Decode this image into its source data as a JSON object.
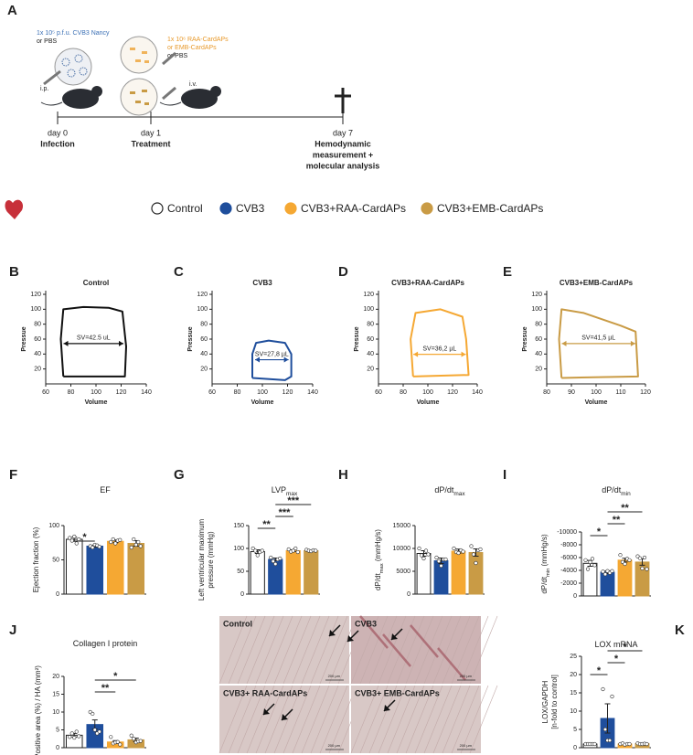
{
  "timeline": {
    "panel": "A",
    "infection_dose": "1x 10⁵ p.f.u. CVB3 Nancy",
    "infection_alt": "or PBS",
    "infection_route": "i.p.",
    "treatment_lines": [
      "1x 10⁶ RAA-CardAPs",
      "or EMB-CardAPs",
      "or PBS"
    ],
    "treatment_route": "i.v.",
    "events": [
      {
        "day": "day 0",
        "label": [
          "Infection"
        ]
      },
      {
        "day": "day 1",
        "label": [
          "Treatment"
        ]
      },
      {
        "day": "day 7",
        "label": [
          "Hemodynamic",
          "measurement +",
          "molecular analysis"
        ]
      }
    ]
  },
  "legend": [
    {
      "name": "Control",
      "color": "#ffffff"
    },
    {
      "name": "CVB3",
      "color": "#1f4e9c"
    },
    {
      "name": "CVB3+RAA-CardAPs",
      "color": "#f5a833"
    },
    {
      "name": "CVB3+EMB-CardAPs",
      "color": "#c99b45"
    }
  ],
  "histology": {
    "panels": [
      {
        "label": "Control"
      },
      {
        "label": "CVB3"
      },
      {
        "label": "CVB3+ RAA-CardAPs"
      },
      {
        "label": "CVB3+ EMB-CardAPs"
      }
    ],
    "scale_bar": "200 µm"
  },
  "chart_data": [
    {
      "type": "pv_loop",
      "panel": "B",
      "title": "Control",
      "color": "#111111",
      "xlabel": "Volume",
      "ylabel": "Pressue",
      "annotation": "SV=42.5 uL",
      "x": [
        74,
        72,
        74,
        90,
        110,
        121,
        124,
        123,
        74
      ],
      "y": [
        10,
        60,
        100,
        103,
        102,
        97,
        50,
        10,
        10
      ],
      "xlim": [
        60,
        140
      ],
      "xticks": [
        60,
        80,
        100,
        120,
        140
      ],
      "ylim": [
        0,
        120
      ],
      "yticks": [
        20,
        40,
        60,
        80,
        100,
        120
      ]
    },
    {
      "type": "pv_loop",
      "panel": "C",
      "title": "CVB3",
      "color": "#1f4e9c",
      "xlabel": "Volume",
      "ylabel": "Pressue",
      "annotation": "SV=27,8 µL",
      "x": [
        92,
        92,
        95,
        105,
        118,
        123,
        123,
        118,
        92
      ],
      "y": [
        8,
        40,
        55,
        58,
        55,
        40,
        10,
        5,
        8
      ],
      "xlim": [
        60,
        140
      ],
      "xticks": [
        60,
        80,
        100,
        120,
        140
      ],
      "ylim": [
        0,
        120
      ],
      "yticks": [
        20,
        40,
        60,
        80,
        100,
        120
      ]
    },
    {
      "type": "pv_loop",
      "panel": "D",
      "title": "CVB3+RAA-CardAPs",
      "color": "#f5a833",
      "xlabel": "Volume",
      "ylabel": "Pressue",
      "annotation": "SV=36,2 µL",
      "x": [
        88,
        86,
        90,
        110,
        128,
        131,
        133,
        88
      ],
      "y": [
        10,
        60,
        95,
        100,
        90,
        60,
        12,
        10
      ],
      "xlim": [
        60,
        140
      ],
      "xticks": [
        60,
        80,
        100,
        120,
        140
      ],
      "ylim": [
        0,
        120
      ],
      "yticks": [
        20,
        40,
        60,
        80,
        100,
        120
      ]
    },
    {
      "type": "pv_loop",
      "panel": "E",
      "title": "CVB3+EMB-CardAPs",
      "color": "#c99b45",
      "xlabel": "Volume",
      "ylabel": "Pressue",
      "annotation": "SV=41,5 µL",
      "x": [
        86,
        85,
        86,
        95,
        110,
        116,
        117,
        86
      ],
      "y": [
        8,
        60,
        100,
        95,
        78,
        70,
        10,
        8
      ],
      "xlim": [
        80,
        120
      ],
      "xticks": [
        80,
        90,
        100,
        110,
        120
      ],
      "ylim": [
        0,
        120
      ],
      "yticks": [
        20,
        40,
        60,
        80,
        100,
        120
      ]
    },
    {
      "type": "bar",
      "panel": "F",
      "title": [
        {
          "text": "EF"
        }
      ],
      "ylabel": [
        [
          {
            "text": "Ejection fraction (%)"
          }
        ]
      ],
      "values": [
        80,
        70,
        77,
        74
      ],
      "errors": [
        3,
        1.5,
        2,
        4
      ],
      "points": [
        [
          82,
          78,
          84,
          74,
          80
        ],
        [
          70,
          68,
          72,
          71,
          69
        ],
        [
          76,
          80,
          74,
          78,
          79
        ],
        [
          68,
          80,
          72,
          76,
          70
        ]
      ],
      "significance": [
        {
          "from": 0,
          "to": 1,
          "label": "*"
        }
      ],
      "ylim": [
        0,
        100
      ],
      "yticks": [
        0,
        50,
        100
      ]
    },
    {
      "type": "bar",
      "panel": "G",
      "title": [
        {
          "text": "LVP"
        },
        {
          "sub": "max"
        }
      ],
      "ylabel": [
        [
          {
            "text": "Left ventricular maximum"
          }
        ],
        [
          {
            "text": "pressure (mmHg)"
          }
        ]
      ],
      "values": [
        93,
        76,
        95,
        95
      ],
      "errors": [
        4,
        3,
        2,
        1.5
      ],
      "points": [
        [
          100,
          95,
          85,
          92,
          95
        ],
        [
          80,
          72,
          66,
          76,
          78
        ],
        [
          98,
          93,
          95,
          100,
          92
        ],
        [
          97,
          95,
          94,
          96,
          95
        ]
      ],
      "significance": [
        {
          "from": 0,
          "to": 1,
          "label": "**"
        },
        {
          "from": 1,
          "to": 2,
          "label": "***"
        },
        {
          "from": 1,
          "to": 3,
          "label": "***"
        }
      ],
      "ylim": [
        0,
        150
      ],
      "yticks": [
        0,
        50,
        100,
        150
      ]
    },
    {
      "type": "bar",
      "panel": "H",
      "title": [
        {
          "text": "dP/dt"
        },
        {
          "sub": "max"
        }
      ],
      "ylabel": [
        [
          {
            "text": "dP/dt"
          },
          {
            "sub": "max"
          },
          {
            "text": " (mmHg/s)"
          }
        ]
      ],
      "values": [
        8900,
        7300,
        9400,
        9100
      ],
      "errors": [
        600,
        600,
        450,
        800
      ],
      "points": [
        [
          10000,
          8500,
          7800,
          9500,
          8700
        ],
        [
          8000,
          7200,
          6200,
          7600,
          7600
        ],
        [
          10000,
          9200,
          9000,
          9600,
          9300
        ],
        [
          10500,
          8700,
          6800,
          9600,
          9800
        ]
      ],
      "significance": [],
      "ylim": [
        0,
        15000
      ],
      "yticks": [
        0,
        5000,
        10000,
        15000
      ]
    },
    {
      "type": "bar",
      "panel": "I",
      "title": [
        {
          "text": "dP/dt"
        },
        {
          "sub": "min"
        }
      ],
      "ylabel": [
        [
          {
            "text": "dP/dt"
          },
          {
            "sub": "min"
          },
          {
            "text": " (mmHg/s)"
          }
        ]
      ],
      "values": [
        -5100,
        -3700,
        -5600,
        -5300
      ],
      "errors": [
        450,
        200,
        300,
        500
      ],
      "points": [
        [
          -5600,
          -4200,
          -5300,
          -5800,
          -4800
        ],
        [
          -3800,
          -3400,
          -3900,
          -3600,
          -3900
        ],
        [
          -6400,
          -5300,
          -5000,
          -5800,
          -5600
        ],
        [
          -6200,
          -5900,
          -4300,
          -6000,
          -4200
        ]
      ],
      "significance": [
        {
          "from": 0,
          "to": 1,
          "label": "*"
        },
        {
          "from": 1,
          "to": 2,
          "label": "**"
        },
        {
          "from": 1,
          "to": 3,
          "label": "**"
        }
      ],
      "ylim": [
        0,
        -10000
      ],
      "yticks": [
        -10000,
        -8000,
        -6000,
        -4000,
        -2000,
        0
      ]
    },
    {
      "type": "bar",
      "panel": "J",
      "title": [
        {
          "text": "Collagen I protein"
        }
      ],
      "ylabel": [
        [
          {
            "text": "Positive area (%) / HA (mm²)"
          }
        ]
      ],
      "values": [
        3.5,
        6.5,
        1.6,
        2.2
      ],
      "errors": [
        0.5,
        1.3,
        0.4,
        0.5
      ],
      "points": [
        [
          3,
          4,
          2.8,
          4.5,
          3.2
        ],
        [
          10,
          9.5,
          5,
          4,
          4.5
        ],
        [
          3,
          1.2,
          1.5,
          1.6,
          0.9
        ],
        [
          3.4,
          2.5,
          1.5,
          1.8,
          1.9
        ]
      ],
      "significance": [
        {
          "from": 1,
          "to": 2,
          "label": "**"
        },
        {
          "from": 1,
          "to": 3,
          "label": "*"
        }
      ],
      "ylim": [
        0,
        20
      ],
      "yticks": [
        0,
        5,
        10,
        15,
        20
      ]
    },
    {
      "type": "bar",
      "panel": "K",
      "title": [
        {
          "text": "LOX mRNA"
        }
      ],
      "ylabel": [
        [
          {
            "text": "LOX/GAPDH"
          }
        ],
        [
          {
            "text": "[n-fold to control]"
          }
        ]
      ],
      "values": [
        1,
        8,
        1,
        1.1
      ],
      "errors": [
        0.1,
        4,
        0.1,
        0.1
      ],
      "points": [
        [
          1,
          1,
          1,
          1,
          1
        ],
        [
          16,
          5,
          2,
          2,
          14
        ],
        [
          1,
          1.2,
          0.8,
          1,
          1
        ],
        [
          1.2,
          1,
          1,
          1.1,
          1
        ]
      ],
      "significance": [
        {
          "from": 0,
          "to": 1,
          "label": "*"
        },
        {
          "from": 1,
          "to": 2,
          "label": "*"
        },
        {
          "from": 1,
          "to": 3,
          "label": "*"
        }
      ],
      "ylim": [
        0,
        25
      ],
      "yticks": [
        0,
        5,
        10,
        15,
        20,
        25
      ]
    }
  ]
}
